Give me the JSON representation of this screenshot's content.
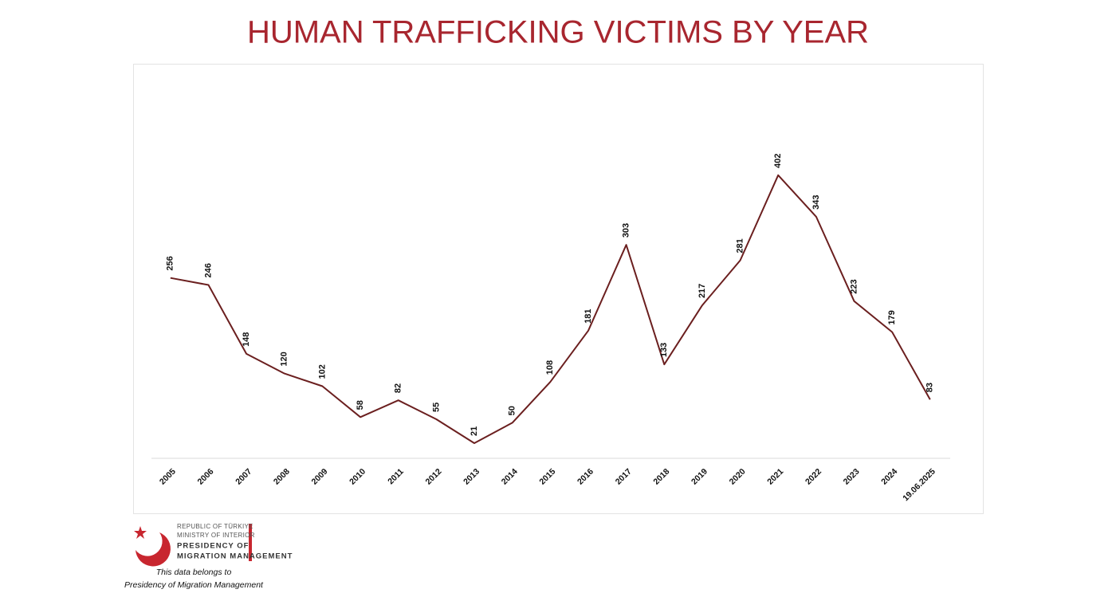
{
  "chart_data": {
    "type": "line",
    "title": "HUMAN TRAFFICKING VICTIMS BY YEAR",
    "categories": [
      "2005",
      "2006",
      "2007",
      "2008",
      "2009",
      "2010",
      "2011",
      "2012",
      "2013",
      "2014",
      "2015",
      "2016",
      "2017",
      "2018",
      "2019",
      "2020",
      "2021",
      "2022",
      "2023",
      "2024",
      "19.06.2025"
    ],
    "values": [
      256,
      246,
      148,
      120,
      102,
      58,
      82,
      55,
      21,
      50,
      108,
      181,
      303,
      133,
      217,
      281,
      402,
      343,
      223,
      179,
      83
    ],
    "color": "#6b1f1f",
    "ylim": [
      0,
      450
    ],
    "grid": false
  },
  "logo": {
    "lines": [
      "REPUBLIC OF TÜRKIYE",
      "MINISTRY OF INTERIOR",
      "PRESIDENCY OF",
      "MIGRATION MANAGEMENT"
    ],
    "note": [
      "This data belongs to",
      "Presidency of Migration Management"
    ]
  }
}
